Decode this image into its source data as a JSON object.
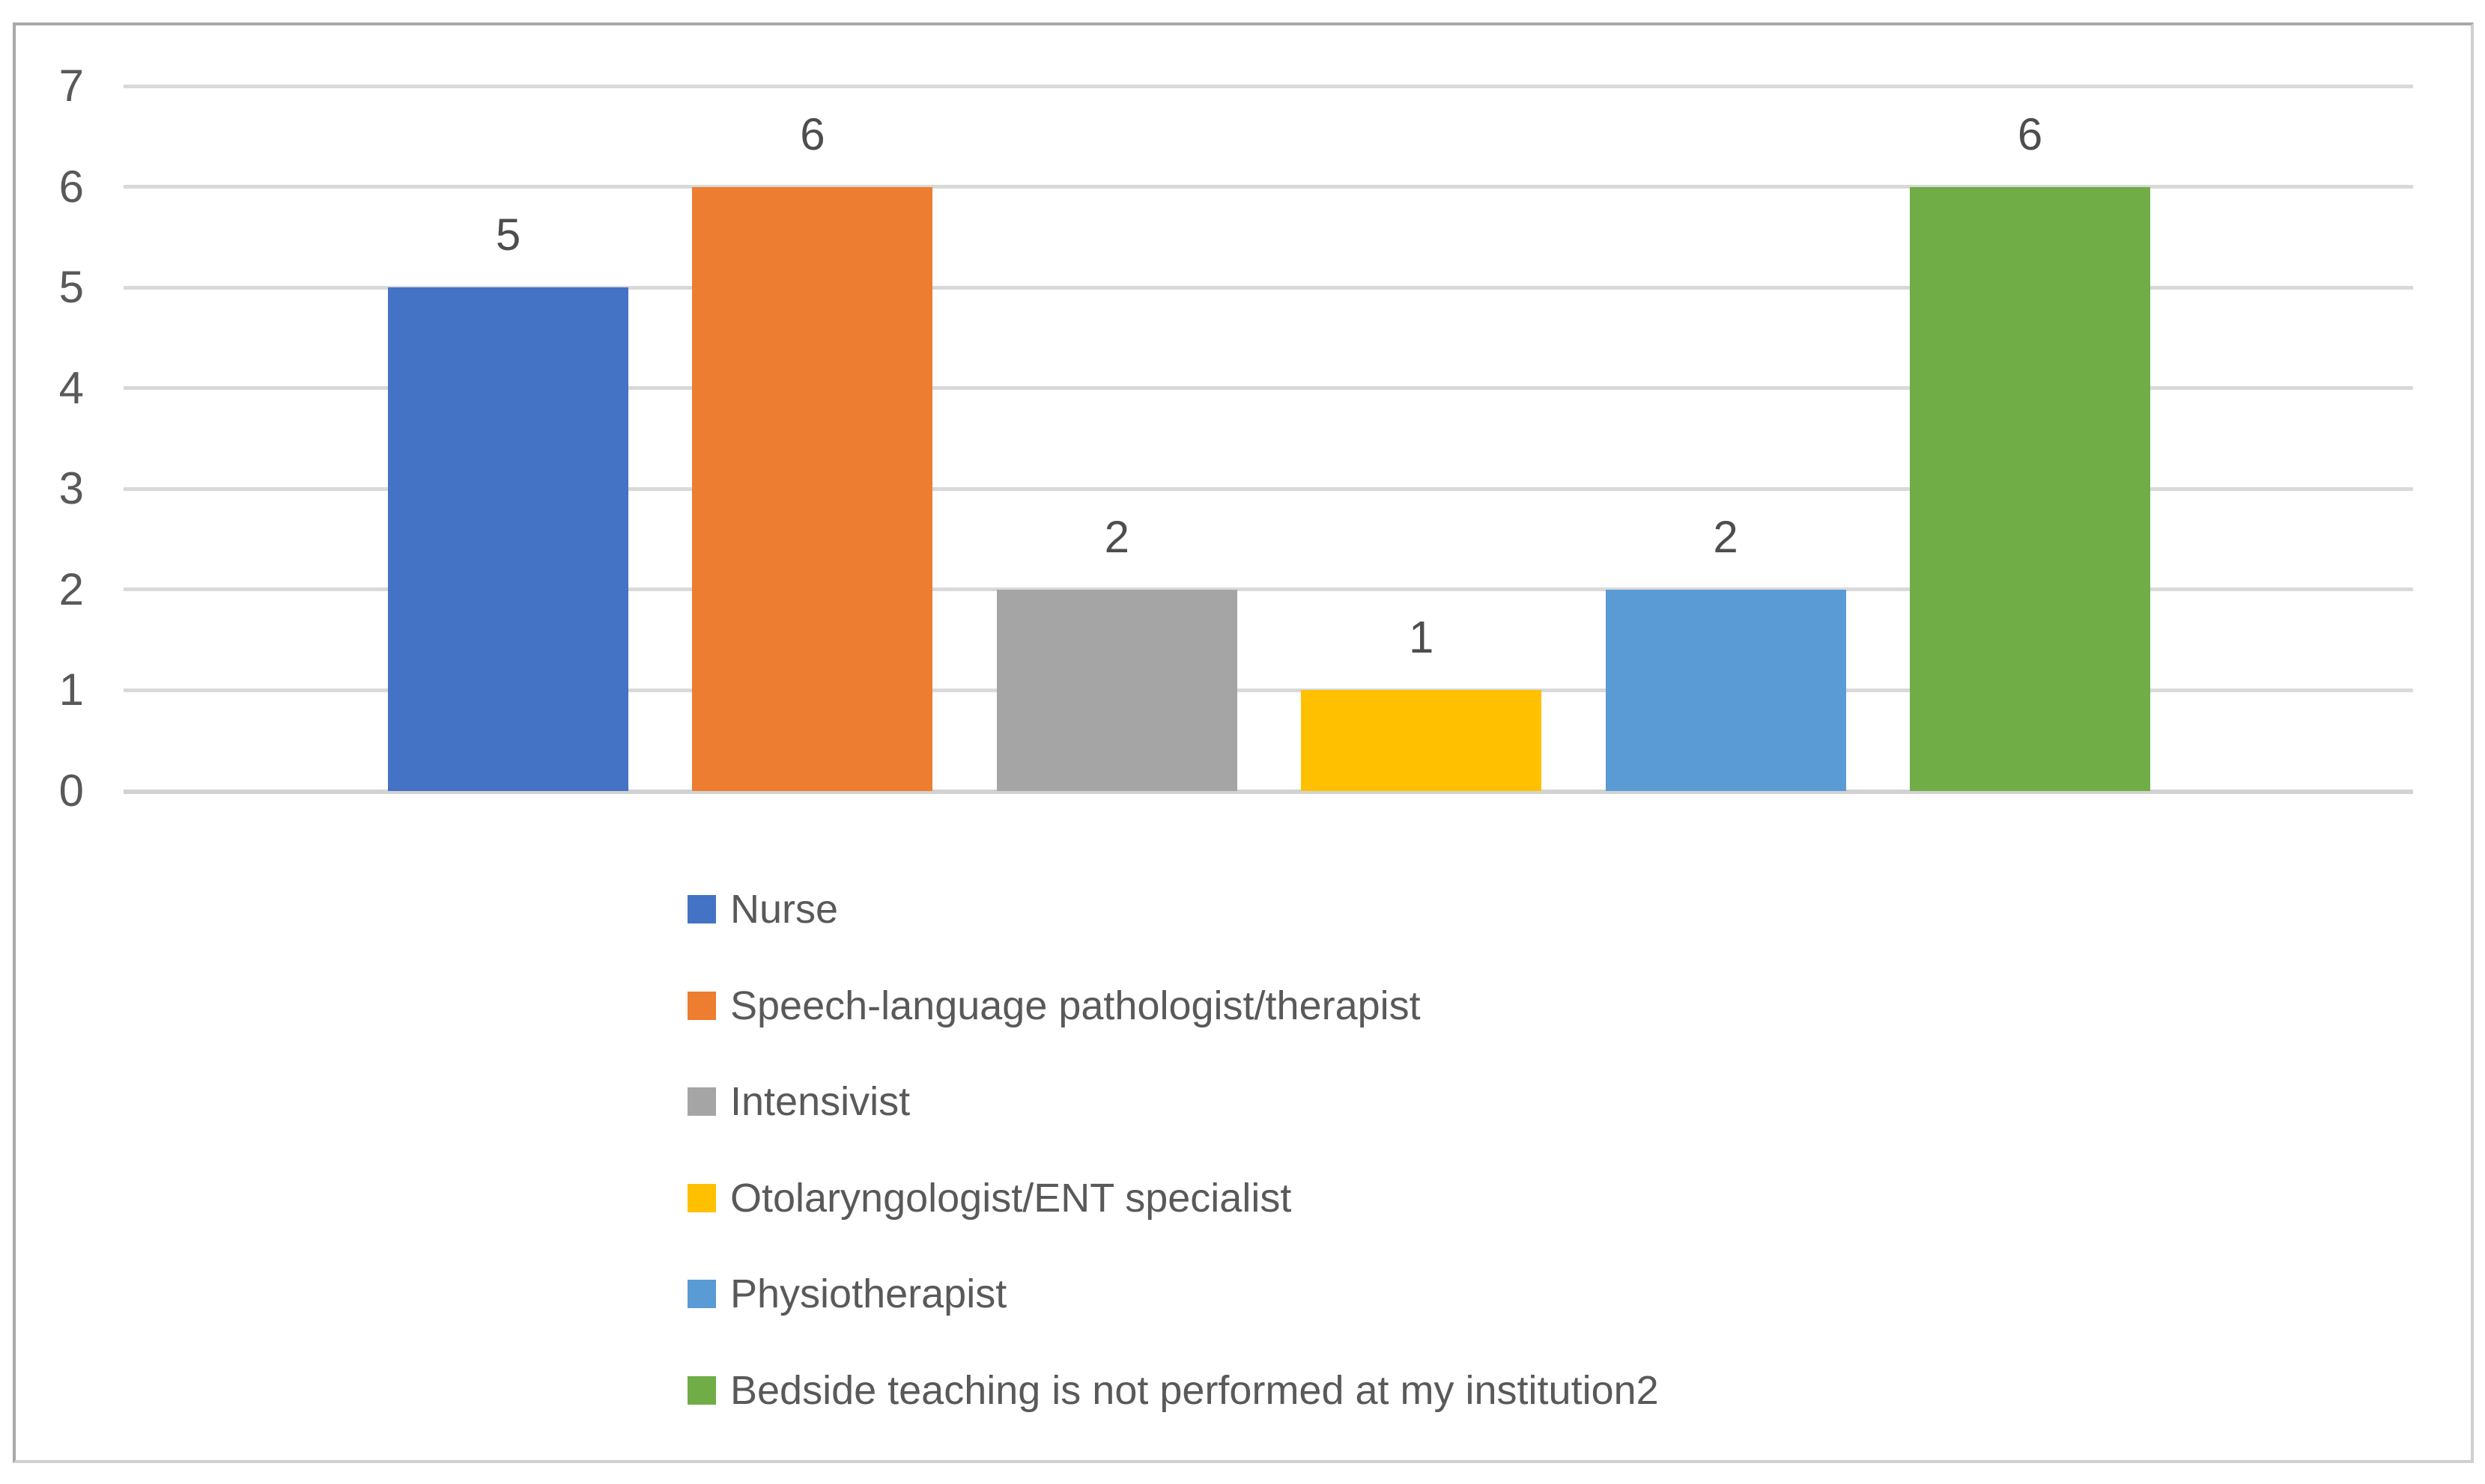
{
  "chart_data": {
    "type": "bar",
    "title": "",
    "xlabel": "",
    "ylabel": "",
    "categories": [
      "Nurse",
      "Speech-language pathologist/therapist",
      "Intensivist",
      "Otolaryngologist/ENT specialist",
      "Physiotherapist",
      "Bedside teaching is not performed at my institution2"
    ],
    "values": [
      5,
      6,
      2,
      1,
      2,
      6
    ],
    "data_labels": [
      "5",
      "6",
      "2",
      "1",
      "2",
      "6"
    ],
    "bar_colors": [
      "#4472C4",
      "#ED7D31",
      "#A5A5A5",
      "#FFC000",
      "#5B9BD5",
      "#70AD47"
    ],
    "y_ticks": [
      0,
      1,
      2,
      3,
      4,
      5,
      6,
      7
    ],
    "ylim": [
      0,
      7
    ],
    "grid": true,
    "gridline_color": "#D9D9D9",
    "axis_text_color": "#595959",
    "legend_position": "bottom",
    "legend": [
      {
        "label": "Nurse",
        "color": "#4472C4"
      },
      {
        "label": "Speech-language pathologist/therapist",
        "color": "#ED7D31"
      },
      {
        "label": "Intensivist",
        "color": "#A5A5A5"
      },
      {
        "label": "Otolaryngologist/ENT specialist",
        "color": "#FFC000"
      },
      {
        "label": "Physiotherapist",
        "color": "#5B9BD5"
      },
      {
        "label": "Bedside teaching is not performed at my institution2",
        "color": "#70AD47"
      }
    ]
  }
}
